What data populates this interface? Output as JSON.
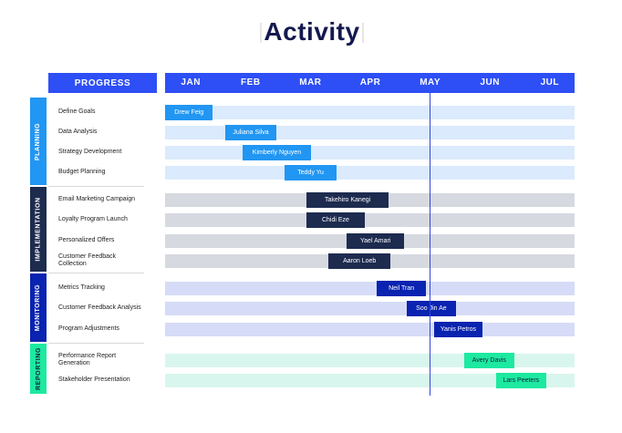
{
  "title": "Activity",
  "progress_label": "PROGRESS",
  "months": [
    "JAN",
    "FEB",
    "MAR",
    "APR",
    "MAY",
    "JUN",
    "JUL"
  ],
  "current_month": "MAY",
  "colors": {
    "header": "#2e4ff5",
    "title": "#14194f",
    "today_line": "#3344dd",
    "planning": {
      "accent": "#2196f3",
      "bar": "#2196f3",
      "track": "#dbeafd",
      "text": "#ffffff"
    },
    "implementation": {
      "accent": "#1d2b4f",
      "bar": "#1d2b4f",
      "track": "#d7d9e1",
      "text": "#ffffff"
    },
    "monitoring": {
      "accent": "#0a23b0",
      "bar": "#0a23b0",
      "track": "#d6dcf7",
      "text": "#ffffff"
    },
    "reporting": {
      "accent": "#1de9a0",
      "bar": "#1de9a0",
      "track": "#d9f6ee",
      "text": "#10243a"
    }
  },
  "phases": [
    {
      "key": "planning",
      "name": "PLANNING",
      "tasks": [
        {
          "label": "Define Goals",
          "assignee": "Drew Feig",
          "start": "Jan 1",
          "end": "Jan 25"
        },
        {
          "label": "Data Analysis",
          "assignee": "Juliana Silva",
          "start": "Feb 1",
          "end": "Feb 27"
        },
        {
          "label": "Strategy Development",
          "assignee": "Kimberly Nguyen",
          "start": "Feb 10",
          "end": "Mar 14"
        },
        {
          "label": "Budget Planning",
          "assignee": "Teddy Yu",
          "start": "Mar 1",
          "end": "Mar 27"
        }
      ]
    },
    {
      "key": "implementation",
      "name": "IMPLEMENTATION",
      "tasks": [
        {
          "label": "Email Marketing Campaign",
          "assignee": "Takehiro Kanegi",
          "start": "Mar 12",
          "end": "Apr 23"
        },
        {
          "label": "Loyalty Program Launch",
          "assignee": "Chidi Eze",
          "start": "Mar 12",
          "end": "Apr 11"
        },
        {
          "label": "Personalized Offers",
          "assignee": "Yael Amari",
          "start": "Apr 2",
          "end": "May 1"
        },
        {
          "label": "Customer Feedback\nCollection",
          "assignee": "Aaron Loeb",
          "start": "Mar 23",
          "end": "Apr 24"
        }
      ]
    },
    {
      "key": "monitoring",
      "name": "MONITORING",
      "tasks": [
        {
          "label": "Metrics Tracking",
          "assignee": "Neil Tran",
          "start": "Apr 17",
          "end": "May 12"
        },
        {
          "label": "Customer Feedback Analysis",
          "assignee": "Soo Jin Ae",
          "start": "May 2",
          "end": "May 27"
        },
        {
          "label": "Program Adjustments",
          "assignee": "Yanis Petros",
          "start": "May 16",
          "end": "Jun 10"
        }
      ]
    },
    {
      "key": "reporting",
      "name": "REPORTING",
      "tasks": [
        {
          "label": "Performance Report\nGeneration",
          "assignee": "Avery Davis",
          "start": "Jun 1",
          "end": "Jun 26"
        },
        {
          "label": "Stakeholder Presentation",
          "assignee": "Lars Peeters",
          "start": "Jun 17",
          "end": "Jul 12"
        }
      ]
    }
  ]
}
